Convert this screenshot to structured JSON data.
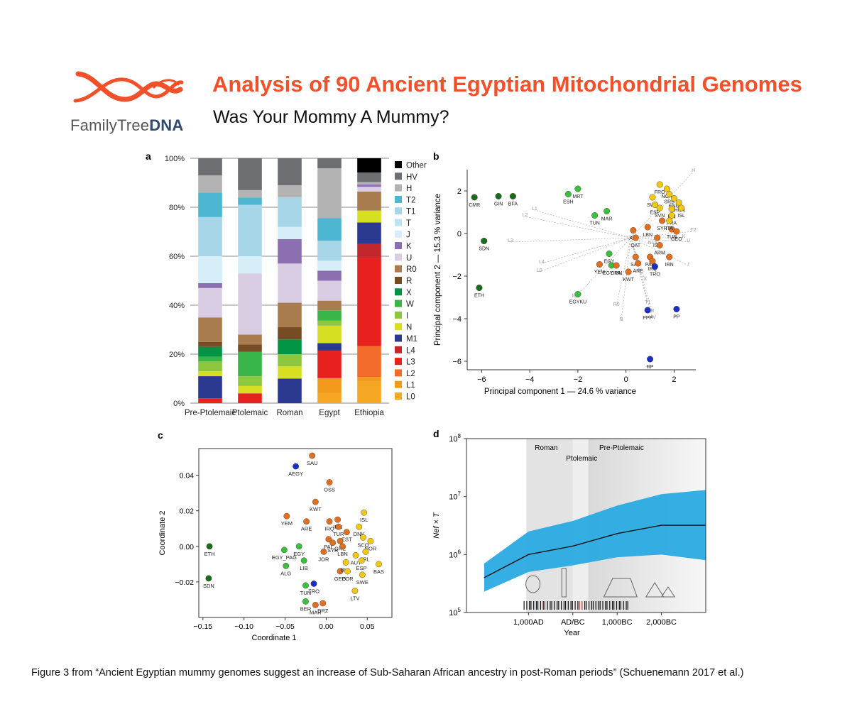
{
  "header": {
    "logo_text_plain": "FamilyTree",
    "logo_text_bold": "DNA",
    "title": "Analysis of 90 Ancient Egyptian Mitochondrial Genomes",
    "subtitle": "Was Your Mommy A Mummy?"
  },
  "caption": "Figure 3 from “Ancient Egyptian mummy genomes suggest an increase of Sub-Saharan African ancestry in post-Roman periods” (Schuenemann 2017 et al.)",
  "colors": {
    "brand": "#f0502a",
    "gridline": "#999999"
  },
  "chart_data": [
    {
      "panel": "a",
      "type": "bar",
      "stacked": true,
      "categories": [
        "Pre-Ptolemaic",
        "Ptolemaic",
        "Roman",
        "Egypt",
        "Ethiopia"
      ],
      "ylim": [
        0,
        100
      ],
      "yticks": [
        "0%",
        "20%",
        "40%",
        "60%",
        "80%",
        "100%"
      ],
      "legend_position": "right",
      "series": [
        {
          "name": "L0",
          "color": "#f5a623",
          "values": [
            0,
            0,
            0,
            4,
            9
          ]
        },
        {
          "name": "L1",
          "color": "#f39a1c",
          "values": [
            0,
            0,
            0,
            6,
            2
          ]
        },
        {
          "name": "L2",
          "color": "#f26b2a",
          "values": [
            0,
            0,
            0,
            0,
            13
          ]
        },
        {
          "name": "L3",
          "color": "#e8211f",
          "values": [
            2,
            4,
            0,
            11,
            37
          ]
        },
        {
          "name": "L4",
          "color": "#c1272d",
          "values": [
            0,
            0,
            0,
            0,
            6
          ]
        },
        {
          "name": "M1",
          "color": "#2b3990",
          "values": [
            9,
            0,
            10,
            3,
            9
          ]
        },
        {
          "name": "N",
          "color": "#d7df23",
          "values": [
            2,
            3,
            5,
            7,
            5
          ]
        },
        {
          "name": "I",
          "color": "#8dc63f",
          "values": [
            4,
            4,
            5,
            2,
            0
          ]
        },
        {
          "name": "W",
          "color": "#39b54a",
          "values": [
            2,
            10,
            0,
            4,
            0
          ]
        },
        {
          "name": "X",
          "color": "#009444",
          "values": [
            4,
            0,
            6,
            0,
            0
          ]
        },
        {
          "name": "R",
          "color": "#754c24",
          "values": [
            2,
            3,
            5,
            0,
            0
          ]
        },
        {
          "name": "R0",
          "color": "#a97c50",
          "values": [
            10,
            4,
            10,
            4,
            8
          ]
        },
        {
          "name": "U",
          "color": "#d9cde3",
          "values": [
            12,
            25,
            16,
            8,
            2
          ]
        },
        {
          "name": "K",
          "color": "#8c6fb1",
          "values": [
            2,
            0,
            10,
            4,
            1
          ]
        },
        {
          "name": "J",
          "color": "#d6eef8",
          "values": [
            11,
            7,
            5,
            4,
            0
          ]
        },
        {
          "name": "T",
          "color": "#bfe3f2",
          "values": [
            0,
            0,
            0,
            0,
            0
          ]
        },
        {
          "name": "T1",
          "color": "#a6d6e8",
          "values": [
            16,
            21,
            12,
            8,
            0
          ]
        },
        {
          "name": "T2",
          "color": "#4db6d0",
          "values": [
            10,
            3,
            0,
            9,
            0
          ]
        },
        {
          "name": "H",
          "color": "#b3b3b3",
          "values": [
            7,
            3,
            5,
            20,
            1
          ]
        },
        {
          "name": "HV",
          "color": "#6d6e71",
          "values": [
            7,
            13,
            11,
            4,
            4
          ]
        },
        {
          "name": "Other",
          "color": "#000000",
          "values": [
            0,
            0,
            0,
            0,
            6
          ]
        }
      ]
    },
    {
      "panel": "b",
      "type": "scatter",
      "xlabel": "Principal component 1 — 24.6 % variance",
      "ylabel": "Principal component 2 — 15.3 % variance",
      "xlim": [
        -6.6,
        2.9
      ],
      "ylim": [
        -6.4,
        3.0
      ],
      "xticks": [
        -6,
        -4,
        -2,
        0,
        2
      ],
      "yticks": [
        2,
        0,
        -2,
        -4,
        -6
      ],
      "tick_labels": {
        "x": [
          "−6",
          "−4",
          "−2",
          "0",
          "2"
        ],
        "y": [
          "2",
          "0",
          "−2",
          "−4",
          "−6"
        ]
      },
      "points": [
        {
          "label": "CMR",
          "x": -6.3,
          "y": 1.7,
          "color": "#1a6b1a"
        },
        {
          "label": "GIN",
          "x": -5.3,
          "y": 1.75,
          "color": "#1a6b1a"
        },
        {
          "label": "BFA",
          "x": -4.7,
          "y": 1.75,
          "color": "#1a6b1a"
        },
        {
          "label": "SDN",
          "x": -5.9,
          "y": -0.35,
          "color": "#1a6b1a"
        },
        {
          "label": "ETH",
          "x": -6.1,
          "y": -2.55,
          "color": "#1a6b1a"
        },
        {
          "label": "MRT",
          "x": -2.0,
          "y": 2.1,
          "color": "#3dbf3d"
        },
        {
          "label": "ESH",
          "x": -2.4,
          "y": 1.85,
          "color": "#3dbf3d"
        },
        {
          "label": "MAR",
          "x": -0.8,
          "y": 1.05,
          "color": "#3dbf3d"
        },
        {
          "label": "TUN",
          "x": -1.3,
          "y": 0.85,
          "color": "#3dbf3d"
        },
        {
          "label": "EGY",
          "x": -0.7,
          "y": -0.95,
          "color": "#3dbf3d"
        },
        {
          "label": "EGY PA",
          "x": -0.6,
          "y": -1.5,
          "color": "#3dbf3d"
        },
        {
          "label": "EGYKU",
          "x": -2.0,
          "y": -2.85,
          "color": "#3dbf3d"
        },
        {
          "label": "YEM",
          "x": -1.1,
          "y": -1.45,
          "color": "#e07020"
        },
        {
          "label": "OMN",
          "x": -0.4,
          "y": -1.5,
          "color": "#e07020"
        },
        {
          "label": "KWT",
          "x": 0.1,
          "y": -1.8,
          "color": "#e07020"
        },
        {
          "label": "JOR",
          "x": 0.3,
          "y": 0.15,
          "color": "#e07020"
        },
        {
          "label": "QAT",
          "x": 0.4,
          "y": -0.2,
          "color": "#e07020"
        },
        {
          "label": "SAU",
          "x": 0.4,
          "y": -1.1,
          "color": "#e07020"
        },
        {
          "label": "ARE",
          "x": 0.5,
          "y": -1.4,
          "color": "#e07020"
        },
        {
          "label": "LBN",
          "x": 0.9,
          "y": 0.3,
          "color": "#e07020"
        },
        {
          "label": "PAK",
          "x": 1.0,
          "y": -1.1,
          "color": "#e07020"
        },
        {
          "label": "IRQ",
          "x": 1.1,
          "y": -1.3,
          "color": "#e07020"
        },
        {
          "label": "ISR",
          "x": 1.3,
          "y": -0.2,
          "color": "#e07020"
        },
        {
          "label": "ARM",
          "x": 1.4,
          "y": -0.55,
          "color": "#e07020"
        },
        {
          "label": "TUR",
          "x": 1.9,
          "y": 0.2,
          "color": "#e07020"
        },
        {
          "label": "GEO",
          "x": 2.1,
          "y": 0.1,
          "color": "#e07020"
        },
        {
          "label": "SYR",
          "x": 1.5,
          "y": 0.6,
          "color": "#e07020"
        },
        {
          "label": "IRN",
          "x": 1.8,
          "y": -1.1,
          "color": "#e07020"
        },
        {
          "label": "FRO",
          "x": 1.4,
          "y": 2.3,
          "color": "#f2c811"
        },
        {
          "label": "NOR",
          "x": 1.7,
          "y": 2.1,
          "color": "#f2c811"
        },
        {
          "label": "SRB",
          "x": 1.8,
          "y": 1.85,
          "color": "#f2c811"
        },
        {
          "label": "ENG",
          "x": 2.0,
          "y": 1.65,
          "color": "#f2c811"
        },
        {
          "label": "IHUN",
          "x": 2.2,
          "y": 1.45,
          "color": "#f2c811"
        },
        {
          "label": "SWE",
          "x": 1.1,
          "y": 1.7,
          "color": "#f2c811"
        },
        {
          "label": "ESP",
          "x": 1.2,
          "y": 1.35,
          "color": "#f2c811"
        },
        {
          "label": "SVN",
          "x": 1.4,
          "y": 1.2,
          "color": "#f2c811"
        },
        {
          "label": "FIN",
          "x": 1.9,
          "y": 1.15,
          "color": "#f2c811"
        },
        {
          "label": "ISL",
          "x": 2.3,
          "y": 1.2,
          "color": "#f2c811"
        },
        {
          "label": "FRA",
          "x": 1.9,
          "y": 0.85,
          "color": "#f2c811"
        },
        {
          "label": "ITA",
          "x": 1.8,
          "y": 0.6,
          "color": "#f2c811"
        },
        {
          "label": "TRO",
          "x": 1.2,
          "y": -1.55,
          "color": "#1a2ec4"
        },
        {
          "label": "PPP",
          "x": 0.9,
          "y": -3.6,
          "color": "#1a2ec4"
        },
        {
          "label": "PP",
          "x": 2.1,
          "y": -3.55,
          "color": "#1a2ec4"
        },
        {
          "label": "RP",
          "x": 1.0,
          "y": -5.9,
          "color": "#1a2ec4"
        }
      ],
      "loading_labels": [
        "H",
        "L1",
        "L2",
        "L3",
        "L4",
        "L0",
        "M1",
        "R0",
        "N",
        "T1",
        "R",
        "HV",
        "X",
        "T2",
        "U",
        "K",
        "N1a",
        "I"
      ]
    },
    {
      "panel": "c",
      "type": "scatter",
      "xlabel": "Coordinate 1",
      "ylabel": "Coordinate 2",
      "xlim": [
        -0.155,
        0.08
      ],
      "ylim": [
        -0.04,
        0.055
      ],
      "xticks": [
        -0.15,
        -0.1,
        -0.05,
        0.0,
        0.05
      ],
      "yticks": [
        0.04,
        0.02,
        0.0,
        -0.02
      ],
      "tick_labels": {
        "x": [
          "−0.15",
          "−0.10",
          "−0.05",
          "0.00",
          "0.05"
        ],
        "y": [
          "0.04",
          "0.02",
          "0.00",
          "−0.02"
        ]
      },
      "points": [
        {
          "label": "ETH",
          "x": -0.142,
          "y": 0.0,
          "color": "#1a6b1a"
        },
        {
          "label": "SDN",
          "x": -0.143,
          "y": -0.018,
          "color": "#1a6b1a"
        },
        {
          "label": "AEGY",
          "x": -0.037,
          "y": 0.045,
          "color": "#1a2ec4"
        },
        {
          "label": "TRO",
          "x": -0.015,
          "y": -0.021,
          "color": "#1a2ec4"
        },
        {
          "label": "SAU",
          "x": -0.017,
          "y": 0.051,
          "color": "#e07020"
        },
        {
          "label": "OSS",
          "x": 0.004,
          "y": 0.036,
          "color": "#e07020"
        },
        {
          "label": "KWT",
          "x": -0.013,
          "y": 0.025,
          "color": "#e07020"
        },
        {
          "label": "YEM",
          "x": -0.048,
          "y": 0.017,
          "color": "#e07020"
        },
        {
          "label": "ARE",
          "x": -0.024,
          "y": 0.014,
          "color": "#e07020"
        },
        {
          "label": "IRN",
          "x": 0.014,
          "y": 0.015,
          "color": "#e07020"
        },
        {
          "label": "IRQ",
          "x": 0.004,
          "y": 0.014,
          "color": "#e07020"
        },
        {
          "label": "TUR",
          "x": 0.015,
          "y": 0.011,
          "color": "#e07020"
        },
        {
          "label": "EST",
          "x": 0.025,
          "y": 0.008,
          "color": "#e07020"
        },
        {
          "label": "PAL",
          "x": 0.003,
          "y": 0.004,
          "color": "#e07020"
        },
        {
          "label": "GRE",
          "x": 0.017,
          "y": 0.003,
          "color": "#e07020"
        },
        {
          "label": "SYR",
          "x": 0.008,
          "y": 0.002,
          "color": "#e07020"
        },
        {
          "label": "JOR",
          "x": -0.003,
          "y": -0.003,
          "color": "#e07020"
        },
        {
          "label": "LBN",
          "x": 0.02,
          "y": 0.0,
          "color": "#e07020"
        },
        {
          "label": "GEO",
          "x": 0.017,
          "y": -0.014,
          "color": "#e07020"
        },
        {
          "label": "MAR",
          "x": -0.013,
          "y": -0.033,
          "color": "#e07020"
        },
        {
          "label": "DRZ",
          "x": -0.004,
          "y": -0.032,
          "color": "#e07020"
        },
        {
          "label": "ISL",
          "x": 0.046,
          "y": 0.019,
          "color": "#f2c811"
        },
        {
          "label": "DNK",
          "x": 0.04,
          "y": 0.011,
          "color": "#f2c811"
        },
        {
          "label": "SCO",
          "x": 0.045,
          "y": 0.005,
          "color": "#f2c811"
        },
        {
          "label": "NOR",
          "x": 0.054,
          "y": 0.003,
          "color": "#f2c811"
        },
        {
          "label": "IRL",
          "x": 0.048,
          "y": -0.003,
          "color": "#f2c811"
        },
        {
          "label": "AUT",
          "x": 0.036,
          "y": -0.005,
          "color": "#f2c811"
        },
        {
          "label": "ESP",
          "x": 0.043,
          "y": -0.008,
          "color": "#f2c811"
        },
        {
          "label": "BAS",
          "x": 0.064,
          "y": -0.01,
          "color": "#f2c811"
        },
        {
          "label": "BUL",
          "x": 0.024,
          "y": -0.009,
          "color": "#f2c811"
        },
        {
          "label": "POR",
          "x": 0.026,
          "y": -0.014,
          "color": "#f2c811"
        },
        {
          "label": "SWE",
          "x": 0.044,
          "y": -0.016,
          "color": "#f2c811"
        },
        {
          "label": "LTV",
          "x": 0.035,
          "y": -0.025,
          "color": "#f2c811"
        },
        {
          "label": "EGY",
          "x": -0.033,
          "y": 0.0,
          "color": "#3dbf3d"
        },
        {
          "label": "EGY_PAG",
          "x": -0.051,
          "y": -0.002,
          "color": "#3dbf3d"
        },
        {
          "label": "ALG",
          "x": -0.049,
          "y": -0.011,
          "color": "#3dbf3d"
        },
        {
          "label": "LIB",
          "x": -0.027,
          "y": -0.008,
          "color": "#3dbf3d"
        },
        {
          "label": "TUN",
          "x": -0.025,
          "y": -0.022,
          "color": "#3dbf3d"
        },
        {
          "label": "BER",
          "x": -0.025,
          "y": -0.031,
          "color": "#3dbf3d"
        }
      ]
    },
    {
      "panel": "d",
      "type": "line",
      "xlabel": "Year",
      "ylabel": "Nef × T",
      "yscale": "log",
      "ylim": [
        100000,
        100000000
      ],
      "yticks": [
        "10^5",
        "10^6",
        "10^7",
        "10^8"
      ],
      "xticks": [
        "1,000AD",
        "AD/BC",
        "1,000BC",
        "2,000BC"
      ],
      "period_labels": [
        "Roman",
        "Ptolemaic",
        "Pre-Ptolemaic"
      ],
      "series": [
        {
          "name": "median",
          "x": [
            2000,
            1000,
            0,
            -1000,
            -2000,
            -3000
          ],
          "y": [
            400000,
            1000000,
            1400000,
            2300000,
            3200000,
            3200000
          ]
        },
        {
          "name": "upper",
          "x": [
            2000,
            1000,
            0,
            -1000,
            -2000,
            -3000
          ],
          "y": [
            700000,
            2500000,
            3800000,
            7000000,
            11000000,
            13000000
          ]
        },
        {
          "name": "lower",
          "x": [
            2000,
            1000,
            0,
            -1000,
            -2000,
            -3000
          ],
          "y": [
            230000,
            500000,
            650000,
            900000,
            1000000,
            800000
          ]
        }
      ]
    }
  ],
  "panels": {
    "a": {
      "letter": "a"
    },
    "b": {
      "letter": "b"
    },
    "c": {
      "letter": "c"
    },
    "d": {
      "letter": "d"
    }
  }
}
